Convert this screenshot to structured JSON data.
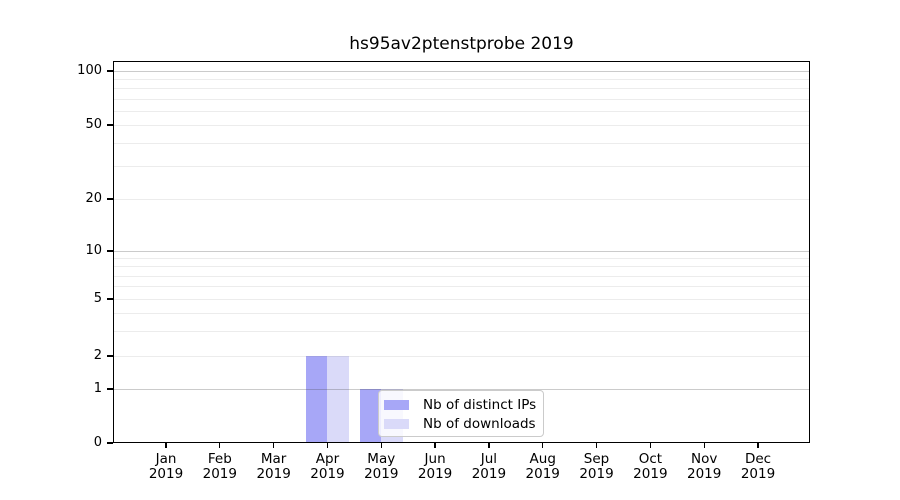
{
  "chart_data": {
    "type": "bar",
    "title": "hs95av2ptenstprobe 2019",
    "categories": [
      "Jan 2019",
      "Feb 2019",
      "Mar 2019",
      "Apr 2019",
      "May 2019",
      "Jun 2019",
      "Jul 2019",
      "Aug 2019",
      "Sep 2019",
      "Oct 2019",
      "Nov 2019",
      "Dec 2019"
    ],
    "series": [
      {
        "name": "Nb of distinct IPs",
        "color": "#a7a7f7",
        "values": [
          0,
          0,
          0,
          2,
          1,
          0,
          0,
          0,
          0,
          0,
          0,
          0
        ]
      },
      {
        "name": "Nb of downloads",
        "color": "#dadaf9",
        "values": [
          0,
          0,
          0,
          2,
          1,
          0,
          0,
          0,
          0,
          0,
          0,
          0
        ]
      }
    ],
    "yscale": "symlog",
    "yticks": [
      0,
      1,
      2,
      5,
      10,
      20,
      50,
      100
    ],
    "minor_grid_values": [
      3,
      4,
      6,
      7,
      8,
      9,
      30,
      40,
      60,
      70,
      80,
      90
    ],
    "ylim": [
      0,
      112
    ],
    "grid": true,
    "legend_position": "lower center",
    "background_color": "#ffffff",
    "axis_color": "#000000"
  }
}
